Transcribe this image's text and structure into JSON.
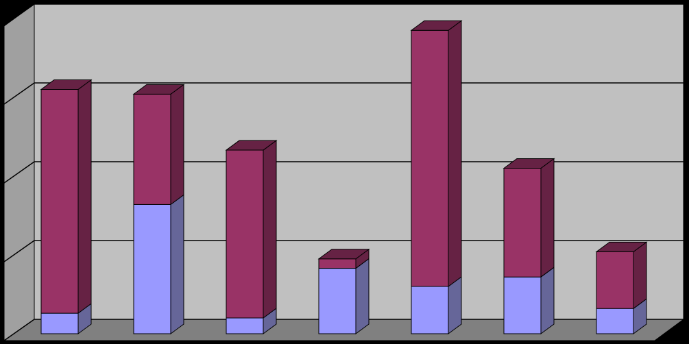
{
  "chart_data": {
    "type": "bar3d-stacked",
    "categories": [
      null,
      null,
      null,
      null,
      null,
      null,
      null
    ],
    "series": [
      {
        "color": "#9999ff",
        "side_color": "#666699",
        "values": [
          0.26,
          1.64,
          0.2,
          0.83,
          0.6,
          0.72,
          0.32
        ]
      },
      {
        "color": "#993366",
        "side_color": "#662244",
        "values": [
          2.84,
          1.4,
          2.13,
          0.12,
          3.25,
          1.38,
          0.72
        ]
      }
    ],
    "ylim": [
      0,
      4
    ],
    "yticks": [
      0,
      1,
      2,
      3,
      4
    ],
    "grid": true
  }
}
